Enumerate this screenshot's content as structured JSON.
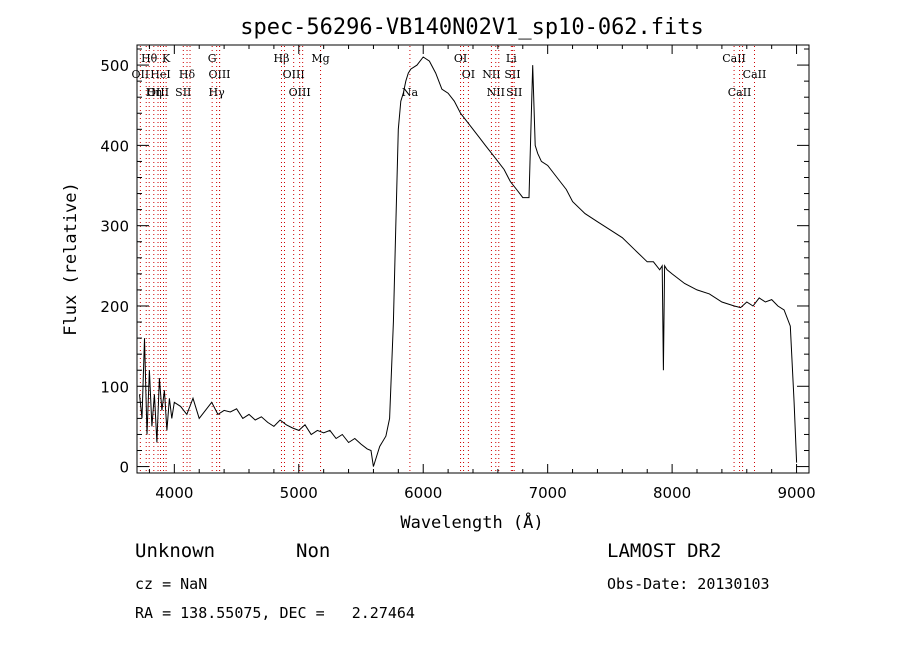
{
  "chart_data": {
    "type": "line",
    "title": "spec-56296-VB140N02V1_sp10-062.fits",
    "xlabel": "Wavelength (Å)",
    "ylabel": "Flux (relative)",
    "xlim": [
      3700,
      9100
    ],
    "ylim": [
      -8,
      525
    ],
    "xticks": [
      4000,
      5000,
      6000,
      7000,
      8000,
      9000
    ],
    "yticks": [
      0,
      100,
      200,
      300,
      400,
      500
    ],
    "grid": false,
    "series": [
      {
        "x": [
          3720,
          3740,
          3760,
          3780,
          3800,
          3820,
          3840,
          3860,
          3880,
          3900,
          3920,
          3940,
          3960,
          3980,
          4000,
          4050,
          4100,
          4150,
          4200,
          4250,
          4300,
          4350,
          4400,
          4450,
          4500,
          4550,
          4600,
          4650,
          4700,
          4750,
          4800,
          4850,
          4900,
          4950,
          5000,
          5050,
          5100,
          5150,
          5200,
          5250,
          5300,
          5350,
          5400,
          5450,
          5500,
          5550,
          5580,
          5600,
          5650,
          5700,
          5730,
          5760,
          5780,
          5800,
          5820,
          5840,
          5860,
          5880,
          5900,
          5950,
          6000,
          6050,
          6100,
          6150,
          6200,
          6250,
          6300,
          6350,
          6400,
          6450,
          6500,
          6550,
          6600,
          6650,
          6700,
          6750,
          6800,
          6850,
          6880,
          6900,
          6920,
          6950,
          7000,
          7050,
          7100,
          7150,
          7200,
          7300,
          7400,
          7500,
          7600,
          7700,
          7800,
          7850,
          7900,
          7920,
          7930,
          7940,
          7960,
          8000,
          8100,
          8200,
          8300,
          8400,
          8500,
          8550,
          8600,
          8650,
          8700,
          8750,
          8800,
          8850,
          8900,
          8950,
          8980,
          9000
        ],
        "y": [
          90,
          60,
          160,
          40,
          120,
          50,
          90,
          30,
          110,
          70,
          95,
          45,
          85,
          60,
          80,
          75,
          65,
          85,
          60,
          70,
          80,
          65,
          70,
          68,
          72,
          60,
          65,
          58,
          62,
          55,
          50,
          58,
          52,
          48,
          45,
          52,
          40,
          45,
          42,
          45,
          35,
          40,
          30,
          35,
          28,
          22,
          20,
          0,
          25,
          38,
          60,
          180,
          300,
          420,
          455,
          465,
          480,
          490,
          495,
          500,
          510,
          505,
          490,
          470,
          465,
          455,
          440,
          430,
          420,
          410,
          400,
          390,
          380,
          370,
          355,
          345,
          335,
          335,
          500,
          400,
          390,
          380,
          375,
          365,
          355,
          345,
          330,
          315,
          305,
          295,
          285,
          270,
          255,
          255,
          245,
          250,
          120,
          250,
          245,
          240,
          228,
          220,
          215,
          205,
          200,
          198,
          205,
          200,
          210,
          205,
          208,
          200,
          195,
          175,
          80,
          5
        ]
      }
    ],
    "spectral_lines": [
      {
        "label": "Hθ",
        "x": 3798,
        "row": 1
      },
      {
        "label": "K",
        "x": 3934,
        "row": 1
      },
      {
        "label": "G",
        "x": 4304,
        "row": 1
      },
      {
        "label": "Hβ",
        "x": 4861,
        "row": 1
      },
      {
        "label": "Mg",
        "x": 5175,
        "row": 1
      },
      {
        "label": "OI",
        "x": 6300,
        "row": 1
      },
      {
        "label": "Li",
        "x": 6708,
        "row": 1
      },
      {
        "label": "CaII",
        "x": 8498,
        "row": 1
      },
      {
        "label": "OII",
        "x": 3727,
        "row": 2
      },
      {
        "label": "HeI",
        "x": 3889,
        "row": 2
      },
      {
        "label": "Hδ",
        "x": 4102,
        "row": 2
      },
      {
        "label": "OIII",
        "x": 4363,
        "row": 2
      },
      {
        "label": "OIII",
        "x": 4959,
        "row": 2
      },
      {
        "label": "OI",
        "x": 6363,
        "row": 2
      },
      {
        "label": "NII",
        "x": 6548,
        "row": 2
      },
      {
        "label": "SII",
        "x": 6717,
        "row": 2
      },
      {
        "label": "CaII",
        "x": 8662,
        "row": 2
      },
      {
        "label": "OIII",
        "x": 3869,
        "row": 3
      },
      {
        "label": "Hη",
        "x": 3835,
        "row": 3
      },
      {
        "label": "SII",
        "x": 4072,
        "row": 3
      },
      {
        "label": "Hγ",
        "x": 4340,
        "row": 3
      },
      {
        "label": "OIII",
        "x": 5007,
        "row": 3
      },
      {
        "label": "Na",
        "x": 5893,
        "row": 3
      },
      {
        "label": "NII",
        "x": 6583,
        "row": 3
      },
      {
        "label": "SII",
        "x": 6731,
        "row": 3
      },
      {
        "label": "CaII",
        "x": 8542,
        "row": 3
      }
    ],
    "extra_line_markers": [
      3750,
      3889,
      4102,
      4340,
      4861,
      5007,
      6300,
      6583,
      8542
    ]
  },
  "footer": {
    "class_label": "Unknown",
    "subclass_label": "Non",
    "cz": "cz = NaN",
    "coords": "RA = 138.55075, DEC =   2.27464",
    "survey": "LAMOST DR2",
    "obs_date": "Obs-Date: 20130103"
  }
}
